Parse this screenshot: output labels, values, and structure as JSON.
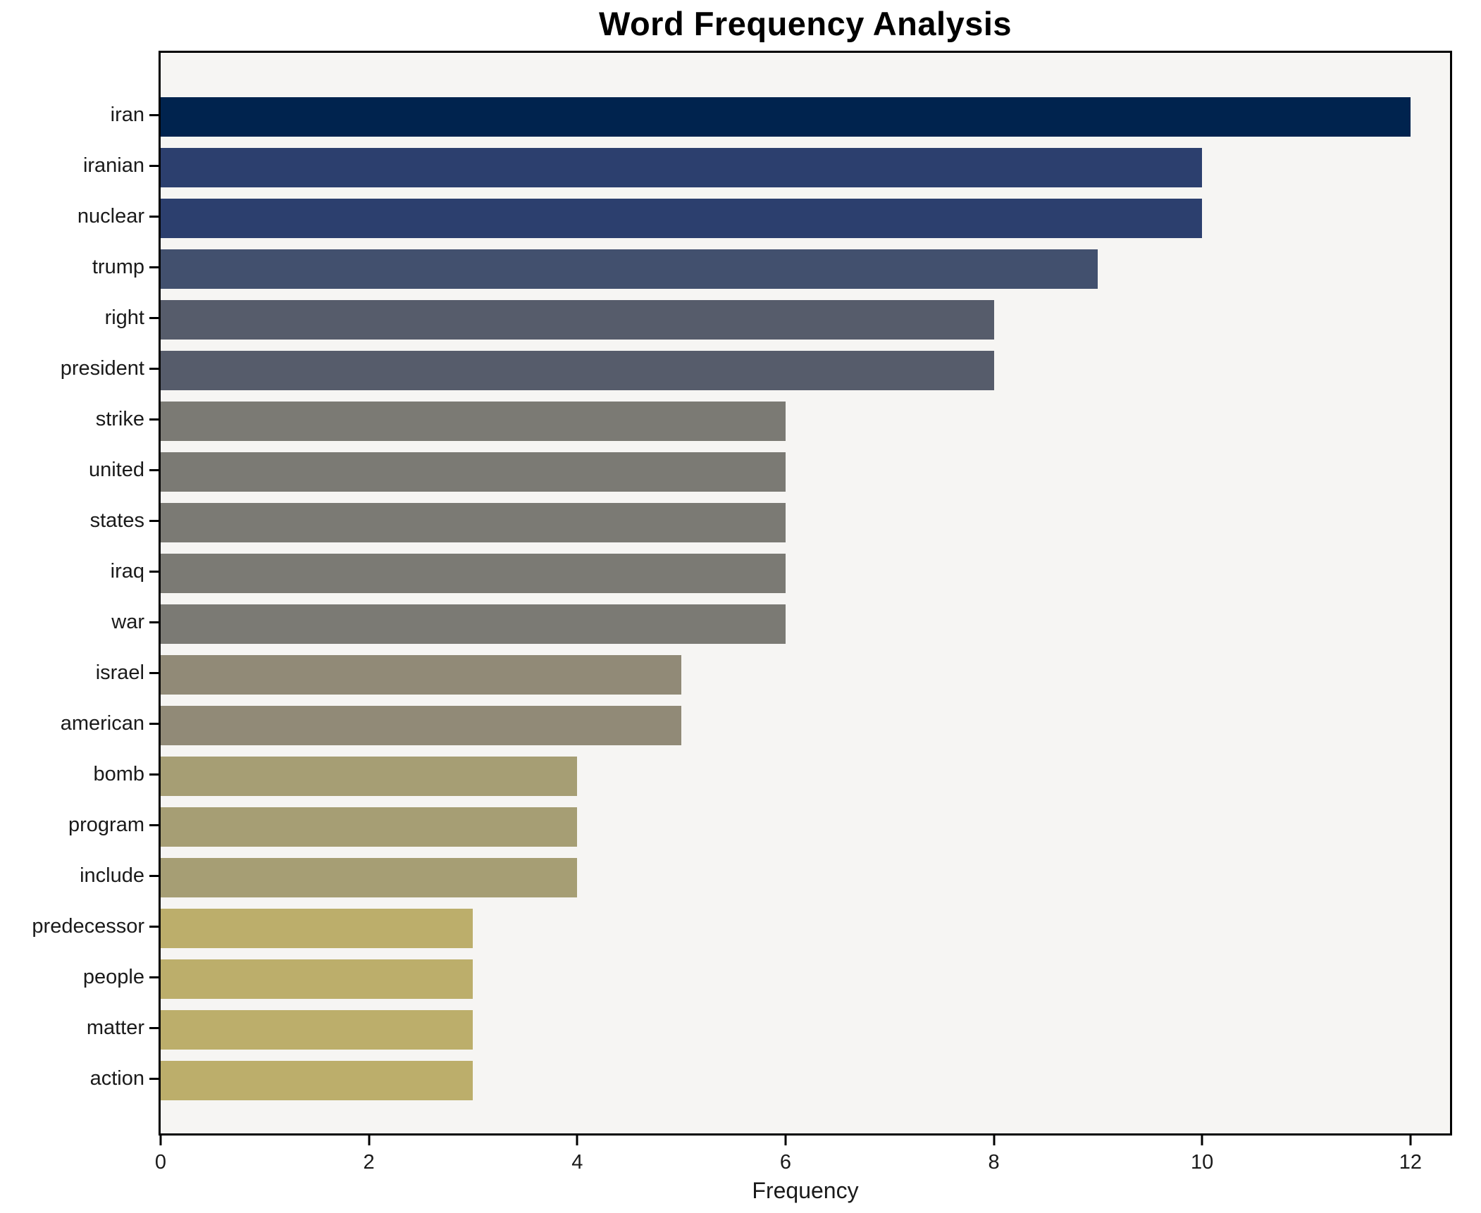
{
  "chart_data": {
    "type": "bar",
    "orientation": "horizontal",
    "title": "Word Frequency Analysis",
    "xlabel": "Frequency",
    "ylabel": "",
    "categories": [
      "iran",
      "iranian",
      "nuclear",
      "trump",
      "right",
      "president",
      "strike",
      "united",
      "states",
      "iraq",
      "war",
      "israel",
      "american",
      "bomb",
      "program",
      "include",
      "predecessor",
      "people",
      "matter",
      "action"
    ],
    "values": [
      12,
      10,
      10,
      9,
      8,
      8,
      6,
      6,
      6,
      6,
      6,
      5,
      5,
      4,
      4,
      4,
      3,
      3,
      3,
      3
    ],
    "bar_colors": [
      "#00234e",
      "#2c3f6e",
      "#2c3f6e",
      "#42506e",
      "#565c6b",
      "#565c6b",
      "#7b7a74",
      "#7b7a74",
      "#7b7a74",
      "#7b7a74",
      "#7b7a74",
      "#918a77",
      "#918a77",
      "#a69e74",
      "#a69e74",
      "#a69e74",
      "#bcae6b",
      "#bcae6b",
      "#bcae6b",
      "#bcae6b"
    ],
    "xticks": [
      0,
      2,
      4,
      6,
      8,
      10,
      12
    ],
    "xlim": [
      0,
      12.38
    ],
    "grid": false,
    "legend": false,
    "axes_background": "#f6f5f3",
    "figure_background": "#ffffff",
    "spine_color": "#000000"
  }
}
